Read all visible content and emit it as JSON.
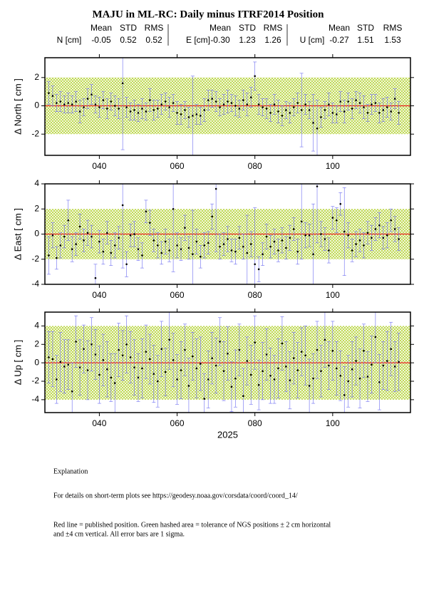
{
  "title": "MAJU in ML-RC: Daily minus ITRF2014 Position",
  "stat_headers": [
    "Mean",
    "STD",
    "RMS"
  ],
  "stats": [
    {
      "label": "N [cm]",
      "mean": "-0.05",
      "std": "0.52",
      "rms": "0.52"
    },
    {
      "label": "E [cm]",
      "mean": "-0.30",
      "std": "1.23",
      "rms": "1.26"
    },
    {
      "label": "U [cm]",
      "mean": "-0.27",
      "std": "1.51",
      "rms": "1.53"
    }
  ],
  "chart_data": [
    {
      "type": "scatter",
      "y_label": "Δ North  [ cm ]",
      "x": [
        27,
        28,
        29,
        30,
        31,
        32,
        33,
        34,
        35,
        36,
        37,
        38,
        39,
        40,
        41,
        42,
        43,
        44,
        45,
        46,
        47,
        48,
        49,
        50,
        51,
        52,
        53,
        54,
        55,
        56,
        57,
        58,
        59,
        60,
        61,
        62,
        63,
        64,
        65,
        66,
        67,
        68,
        69,
        70,
        71,
        72,
        73,
        74,
        75,
        76,
        77,
        78,
        79,
        80,
        81,
        82,
        83,
        84,
        85,
        86,
        87,
        88,
        89,
        90,
        91,
        92,
        93,
        94,
        95,
        96,
        97,
        98,
        99,
        100,
        101,
        102,
        103,
        104,
        105,
        106,
        107,
        108,
        109,
        110,
        111,
        112,
        113,
        114,
        115,
        116,
        117
      ],
      "values": [
        0.9,
        0.7,
        0.2,
        0.3,
        0.1,
        0.2,
        0.1,
        0.3,
        -0.4,
        -0.1,
        0.5,
        0.8,
        0.1,
        -0.1,
        0.4,
        -0.2,
        0.3,
        0.0,
        -0.2,
        1.6,
        -0.1,
        -0.4,
        -0.3,
        -0.5,
        -0.2,
        -0.4,
        0.4,
        -0.3,
        -0.2,
        0.1,
        0.3,
        -0.1,
        0.2,
        -0.5,
        -0.6,
        -0.3,
        -0.8,
        -0.7,
        -0.6,
        -0.7,
        -0.3,
        0.4,
        0.5,
        0.3,
        -0.1,
        0.1,
        0.3,
        0.2,
        0.0,
        -0.2,
        0.4,
        0.1,
        0.6,
        2.1,
        0.1,
        -0.1,
        -0.2,
        -0.5,
        0.1,
        -0.4,
        -0.7,
        -0.3,
        -0.5,
        -0.1,
        0.2,
        -0.3,
        0.1,
        -0.3,
        -1.2,
        -1.6,
        -0.8,
        -0.3,
        0.1,
        -0.5,
        -0.6,
        0.3,
        -0.4,
        0.3,
        -0.2,
        0.4,
        0.2,
        -0.1,
        -0.5,
        0.1,
        0.2,
        -0.5,
        -0.3,
        -0.1,
        -0.4,
        0.5,
        -0.5
      ],
      "errors": [
        0.8,
        0.7,
        0.6,
        0.7,
        0.6,
        0.7,
        0.6,
        0.7,
        0.8,
        0.6,
        0.7,
        0.7,
        0.6,
        0.7,
        0.6,
        0.7,
        0.6,
        0.7,
        0.7,
        4.7,
        0.7,
        0.6,
        0.7,
        0.6,
        0.7,
        0.6,
        0.8,
        0.7,
        0.6,
        0.7,
        0.6,
        0.7,
        0.6,
        0.8,
        0.7,
        0.6,
        0.7,
        2.8,
        0.7,
        0.6,
        0.8,
        0.7,
        0.6,
        0.7,
        0.6,
        0.7,
        0.8,
        0.6,
        0.7,
        0.6,
        0.7,
        0.8,
        0.7,
        1.0,
        0.7,
        0.6,
        0.7,
        0.6,
        0.7,
        0.8,
        0.7,
        0.6,
        0.7,
        0.6,
        0.7,
        2.6,
        0.7,
        0.6,
        2.0,
        2.0,
        0.7,
        0.6,
        0.8,
        0.7,
        0.6,
        0.7,
        0.8,
        0.6,
        0.7,
        0.6,
        0.7,
        0.8,
        0.6,
        0.7,
        0.6,
        0.7,
        0.8,
        0.7,
        0.6,
        0.7,
        0.8
      ],
      "xlim": [
        26,
        120
      ],
      "ylim": [
        -3.5,
        3.4
      ],
      "xticks": [
        {
          "value": 40,
          "label": "040"
        },
        {
          "value": 60,
          "label": "060"
        },
        {
          "value": 80,
          "label": "080"
        },
        {
          "value": 100,
          "label": "100"
        }
      ],
      "yticks": [
        -2,
        0,
        2
      ],
      "band": [
        -2,
        2
      ],
      "reference": 0
    },
    {
      "type": "scatter",
      "y_label": "Δ East  [ cm ]",
      "x": [
        27,
        28,
        29,
        30,
        31,
        32,
        33,
        34,
        35,
        36,
        37,
        38,
        39,
        40,
        41,
        42,
        43,
        44,
        45,
        46,
        47,
        48,
        49,
        50,
        51,
        52,
        53,
        54,
        55,
        56,
        57,
        58,
        59,
        60,
        61,
        62,
        63,
        64,
        65,
        66,
        67,
        68,
        69,
        70,
        71,
        72,
        73,
        74,
        75,
        76,
        77,
        78,
        79,
        80,
        81,
        82,
        83,
        84,
        85,
        86,
        87,
        88,
        89,
        90,
        91,
        92,
        93,
        94,
        95,
        96,
        97,
        98,
        99,
        100,
        101,
        102,
        103,
        104,
        105,
        106,
        107,
        108,
        109,
        110,
        111,
        112,
        113,
        114,
        115,
        116,
        117
      ],
      "values": [
        -1.7,
        -0.1,
        -1.9,
        -0.9,
        -0.2,
        1.1,
        -1.2,
        -0.8,
        0.6,
        -0.5,
        0.1,
        -0.2,
        -3.5,
        -0.6,
        -1.4,
        0.1,
        -1.5,
        -0.9,
        -0.3,
        2.3,
        -2.4,
        -0.1,
        0.0,
        -1.2,
        -1.7,
        1.8,
        0.9,
        -0.5,
        -0.9,
        -1.5,
        -0.6,
        -1.3,
        2.0,
        -0.9,
        -1.2,
        0.5,
        -1.1,
        -1.6,
        -0.6,
        -1.8,
        -0.9,
        -0.7,
        1.4,
        3.6,
        -1.0,
        -0.8,
        -0.4,
        -1.3,
        -1.4,
        -0.3,
        -1.0,
        -1.5,
        -0.8,
        -2.4,
        -2.8,
        -1.6,
        -0.2,
        -1.0,
        -0.6,
        -1.3,
        -0.5,
        -1.1,
        -0.3,
        0.4,
        -1.4,
        1.0,
        -0.1,
        -0.1,
        -1.6,
        3.8,
        0.0,
        -0.4,
        -1.3,
        1.3,
        1.1,
        2.4,
        0.2,
        -0.1,
        -1.3,
        -0.8,
        -0.5,
        -0.9,
        0.1,
        -0.3,
        0.4,
        0.7,
        -0.3,
        -0.1,
        1.1,
        0.4,
        -0.4
      ],
      "errors": [
        1.5,
        1.0,
        0.9,
        1.0,
        0.9,
        1.6,
        1.0,
        0.9,
        1.0,
        0.9,
        1.0,
        0.9,
        1.1,
        0.9,
        1.0,
        0.9,
        1.0,
        1.0,
        0.9,
        5.0,
        1.0,
        0.9,
        1.0,
        0.9,
        1.0,
        0.9,
        1.0,
        0.9,
        1.0,
        0.9,
        1.0,
        0.9,
        5.0,
        1.0,
        0.9,
        1.0,
        0.9,
        3.5,
        1.0,
        0.9,
        1.0,
        0.9,
        1.0,
        5.0,
        1.0,
        0.9,
        1.0,
        0.9,
        1.0,
        0.9,
        1.0,
        3.0,
        1.0,
        4.5,
        1.0,
        0.9,
        1.0,
        0.9,
        1.0,
        0.9,
        1.0,
        0.9,
        1.0,
        0.9,
        1.0,
        3.0,
        1.0,
        0.9,
        4.0,
        4.5,
        1.0,
        0.9,
        1.0,
        0.9,
        1.0,
        0.9,
        3.5,
        1.0,
        0.9,
        1.0,
        0.9,
        1.0,
        0.9,
        1.0,
        0.9,
        1.0,
        0.9,
        1.0,
        0.9,
        1.0,
        0.9
      ],
      "xlim": [
        26,
        120
      ],
      "ylim": [
        -4,
        4
      ],
      "xticks": [
        {
          "value": 40,
          "label": "040"
        },
        {
          "value": 60,
          "label": "060"
        },
        {
          "value": 80,
          "label": "080"
        },
        {
          "value": 100,
          "label": "100"
        }
      ],
      "yticks": [
        -4,
        -2,
        0,
        2,
        4
      ],
      "band": [
        -2,
        2
      ],
      "reference": 0
    },
    {
      "type": "scatter",
      "y_label": "Δ Up  [ cm ]",
      "x_label": "2025",
      "x": [
        27,
        28,
        29,
        30,
        31,
        32,
        33,
        34,
        35,
        36,
        37,
        38,
        39,
        40,
        41,
        42,
        43,
        44,
        45,
        46,
        47,
        48,
        49,
        50,
        51,
        52,
        53,
        54,
        55,
        56,
        57,
        58,
        59,
        60,
        61,
        62,
        63,
        64,
        65,
        66,
        67,
        68,
        69,
        70,
        71,
        72,
        73,
        74,
        75,
        76,
        77,
        78,
        79,
        80,
        81,
        82,
        83,
        84,
        85,
        86,
        87,
        88,
        89,
        90,
        91,
        92,
        93,
        94,
        95,
        96,
        97,
        98,
        99,
        100,
        101,
        102,
        103,
        104,
        105,
        106,
        107,
        108,
        109,
        110,
        111,
        112,
        113,
        114,
        115,
        116,
        117
      ],
      "values": [
        0.6,
        0.4,
        -1.8,
        0.1,
        -0.4,
        -0.2,
        -3.1,
        2.3,
        -0.5,
        1.5,
        -0.8,
        2.0,
        0.9,
        -1.3,
        0.3,
        -0.7,
        -1.6,
        -2.2,
        1.4,
        0.8,
        2.0,
        0.6,
        -0.5,
        -1.6,
        -0.6,
        1.2,
        0.4,
        -1.2,
        -2.0,
        1.5,
        -1.0,
        2.5,
        0.3,
        -1.8,
        -0.8,
        1.4,
        -2.5,
        0.7,
        -0.6,
        -0.1,
        -3.9,
        -1.8,
        0.5,
        -0.3,
        2.3,
        -0.9,
        1.0,
        -2.6,
        -1.7,
        1.4,
        -3.6,
        0.2,
        -1.3,
        2.2,
        -2.4,
        -0.9,
        0.9,
        -1.4,
        -1.8,
        -0.6,
        2.1,
        -0.4,
        -1.9,
        0.5,
        -0.8,
        1.2,
        0.8,
        -2.5,
        -1.7,
        1.4,
        -0.9,
        2.5,
        -0.3,
        1.3,
        -0.6,
        -1.4,
        -3.5,
        -2.0,
        -0.7,
        0.2,
        -1.7,
        1.3,
        -1.5,
        -0.2,
        2.8,
        -2.1,
        -0.3,
        0.2,
        1.5,
        -0.4,
        0.1
      ],
      "errors": [
        2.8,
        3.0,
        2.6,
        3.2,
        2.9,
        2.7,
        3.1,
        2.8,
        3.0,
        2.6,
        3.2,
        2.9,
        2.7,
        3.1,
        2.8,
        3.0,
        2.6,
        3.2,
        2.9,
        2.7,
        3.1,
        2.8,
        3.0,
        2.6,
        3.2,
        2.9,
        2.7,
        3.1,
        2.8,
        3.0,
        2.6,
        3.2,
        2.9,
        2.7,
        3.1,
        2.8,
        3.0,
        2.6,
        3.2,
        2.9,
        2.7,
        3.1,
        2.8,
        3.0,
        2.6,
        3.2,
        2.9,
        2.7,
        3.1,
        2.8,
        3.0,
        2.6,
        3.2,
        2.9,
        2.7,
        3.1,
        2.8,
        3.0,
        2.6,
        3.2,
        2.9,
        2.7,
        3.1,
        2.8,
        3.0,
        2.6,
        3.2,
        2.9,
        2.7,
        3.1,
        2.8,
        3.0,
        2.6,
        3.2,
        2.9,
        2.7,
        3.1,
        2.8,
        3.0,
        2.6,
        3.2,
        2.9,
        2.7,
        3.1,
        2.8,
        3.0,
        2.6,
        3.2,
        2.9,
        2.7,
        3.1
      ],
      "xlim": [
        26,
        120
      ],
      "ylim": [
        -5.4,
        5.5
      ],
      "xticks": [
        {
          "value": 40,
          "label": "040"
        },
        {
          "value": 60,
          "label": "060"
        },
        {
          "value": 80,
          "label": "080"
        },
        {
          "value": 100,
          "label": "100"
        }
      ],
      "yticks": [
        -4,
        -2,
        0,
        2,
        4
      ],
      "band": [
        -4,
        4
      ],
      "reference": 0
    }
  ],
  "explanation": {
    "heading": "Explanation",
    "details": "For details on short-term plots see https://geodesy.noaa.gov/corsdata/coord/coord_14/",
    "legend_1": "Red line = published position.  Green hashed area = tolerance of NGS positions ± 2 cm horizontal",
    "legend_2": "and ±4 cm vertical.  All error bars are 1 sigma."
  }
}
